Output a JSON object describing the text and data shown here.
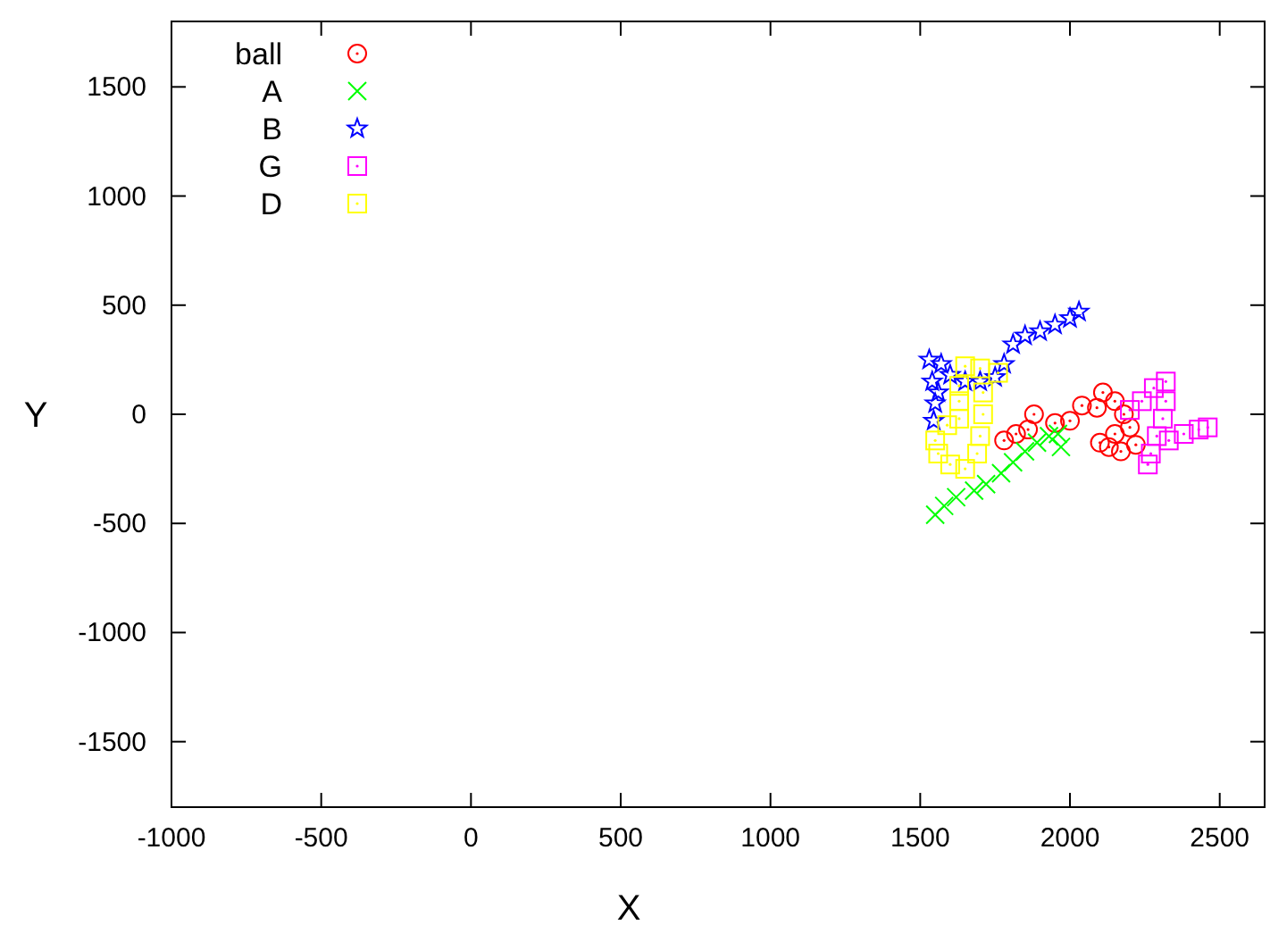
{
  "chart_data": {
    "type": "scatter",
    "xlabel": "X",
    "ylabel": "Y",
    "xlim": [
      -1000,
      2650
    ],
    "ylim": [
      -1800,
      1800
    ],
    "xticks": [
      -1000,
      -500,
      0,
      500,
      1000,
      1500,
      2000,
      2500
    ],
    "yticks": [
      -1500,
      -1000,
      -500,
      0,
      500,
      1000,
      1500
    ],
    "grid": false,
    "legend": "top left",
    "series": [
      {
        "name": "ball",
        "color": "#ff0000",
        "marker": "circle",
        "x": [
          1780,
          1820,
          1860,
          1880,
          1950,
          2000,
          2040,
          2090,
          2110,
          2150,
          2180,
          2150,
          2130,
          2100,
          2170,
          2220,
          2200
        ],
        "values": [
          -120,
          -90,
          -70,
          0,
          -40,
          -30,
          40,
          30,
          100,
          60,
          0,
          -90,
          -150,
          -130,
          -170,
          -140,
          -60
        ]
      },
      {
        "name": "A",
        "color": "#00ff00",
        "marker": "cross",
        "x": [
          1550,
          1580,
          1620,
          1680,
          1720,
          1770,
          1810,
          1850,
          1890,
          1930,
          1960,
          1970
        ],
        "values": [
          -460,
          -420,
          -380,
          -350,
          -320,
          -270,
          -220,
          -170,
          -130,
          -100,
          -90,
          -150
        ]
      },
      {
        "name": "B",
        "color": "#0000ff",
        "marker": "star",
        "x": [
          1530,
          1540,
          1550,
          1545,
          1560,
          1570,
          1600,
          1650,
          1700,
          1750,
          1780,
          1810,
          1850,
          1900,
          1950,
          2000,
          2030
        ],
        "values": [
          250,
          150,
          50,
          -30,
          100,
          230,
          180,
          150,
          150,
          170,
          230,
          320,
          360,
          380,
          410,
          440,
          470
        ]
      },
      {
        "name": "G",
        "color": "#ff00ff",
        "marker": "square",
        "x": [
          2200,
          2240,
          2280,
          2320,
          2320,
          2310,
          2290,
          2270,
          2260,
          2330,
          2380,
          2430,
          2460
        ],
        "values": [
          20,
          60,
          120,
          150,
          60,
          -20,
          -100,
          -180,
          -230,
          -120,
          -90,
          -70,
          -60
        ]
      },
      {
        "name": "D",
        "color": "#ffff00",
        "marker": "square",
        "x": [
          1650,
          1700,
          1760,
          1710,
          1710,
          1700,
          1690,
          1650,
          1600,
          1560,
          1550,
          1590,
          1630,
          1630,
          1630
        ],
        "values": [
          220,
          210,
          190,
          100,
          0,
          -100,
          -180,
          -250,
          -230,
          -180,
          -120,
          -50,
          -20,
          60,
          130
        ]
      }
    ]
  }
}
